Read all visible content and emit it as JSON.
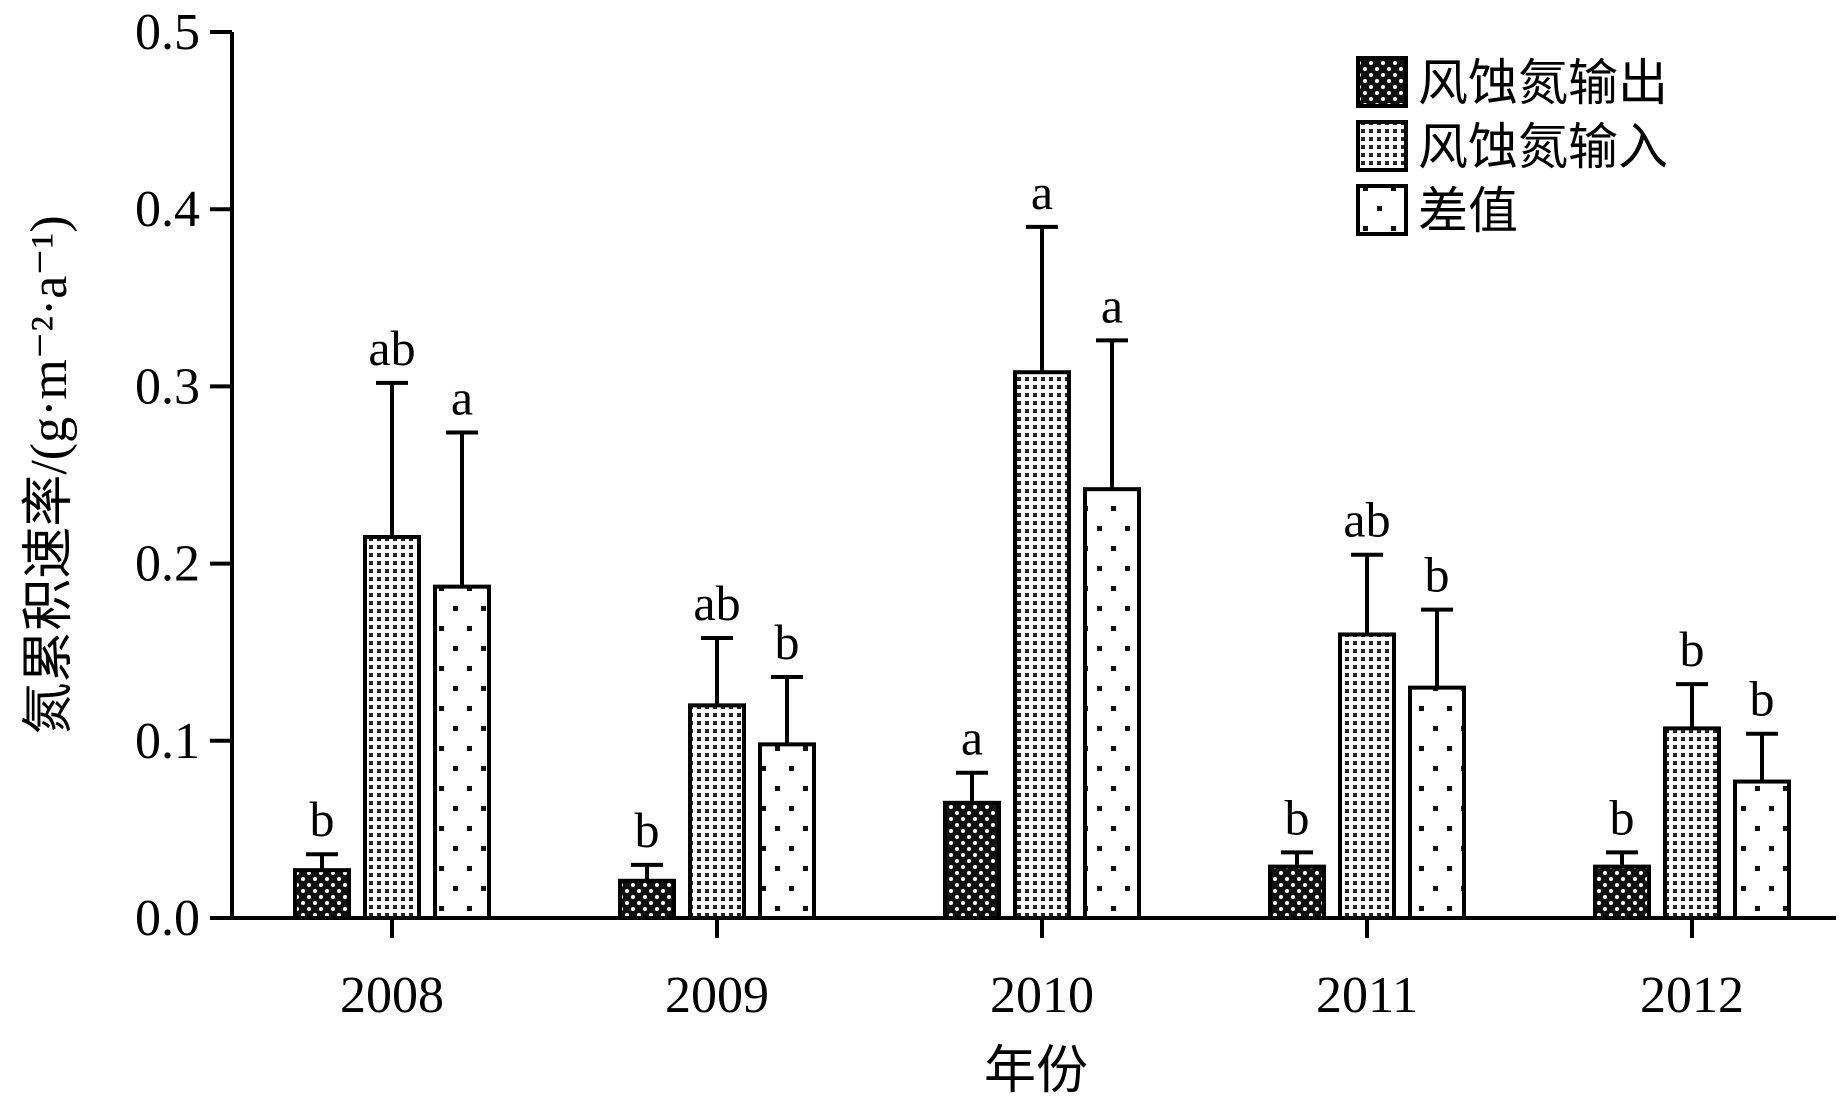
{
  "chart_data": {
    "type": "bar",
    "xlabel": "年份",
    "ylabel": "氮累积速率/(g·m⁻²·a⁻¹)",
    "ylim": [
      0,
      0.5
    ],
    "yticks": [
      "0.0",
      "0.1",
      "0.2",
      "0.3",
      "0.4",
      "0.5"
    ],
    "categories": [
      "2008",
      "2009",
      "2010",
      "2011",
      "2012"
    ],
    "series": [
      {
        "name": "风蚀氮输出",
        "pattern": "dense-dots-dark",
        "values": [
          0.027,
          0.021,
          0.065,
          0.029,
          0.029
        ],
        "errors": [
          0.009,
          0.009,
          0.017,
          0.008,
          0.008
        ],
        "labels": [
          "b",
          "b",
          "a",
          "b",
          "b"
        ]
      },
      {
        "name": "风蚀氮输入",
        "pattern": "dense-dots-light",
        "values": [
          0.215,
          0.12,
          0.308,
          0.16,
          0.107
        ],
        "errors": [
          0.087,
          0.038,
          0.082,
          0.045,
          0.025
        ],
        "labels": [
          "ab",
          "ab",
          "a",
          "ab",
          "b"
        ]
      },
      {
        "name": "差值",
        "pattern": "sparse-dots",
        "values": [
          0.187,
          0.098,
          0.242,
          0.13,
          0.077
        ],
        "errors": [
          0.087,
          0.038,
          0.084,
          0.044,
          0.027
        ],
        "labels": [
          "a",
          "b",
          "a",
          "b",
          "b"
        ]
      }
    ],
    "legend_position": "top-right",
    "grid": false
  }
}
